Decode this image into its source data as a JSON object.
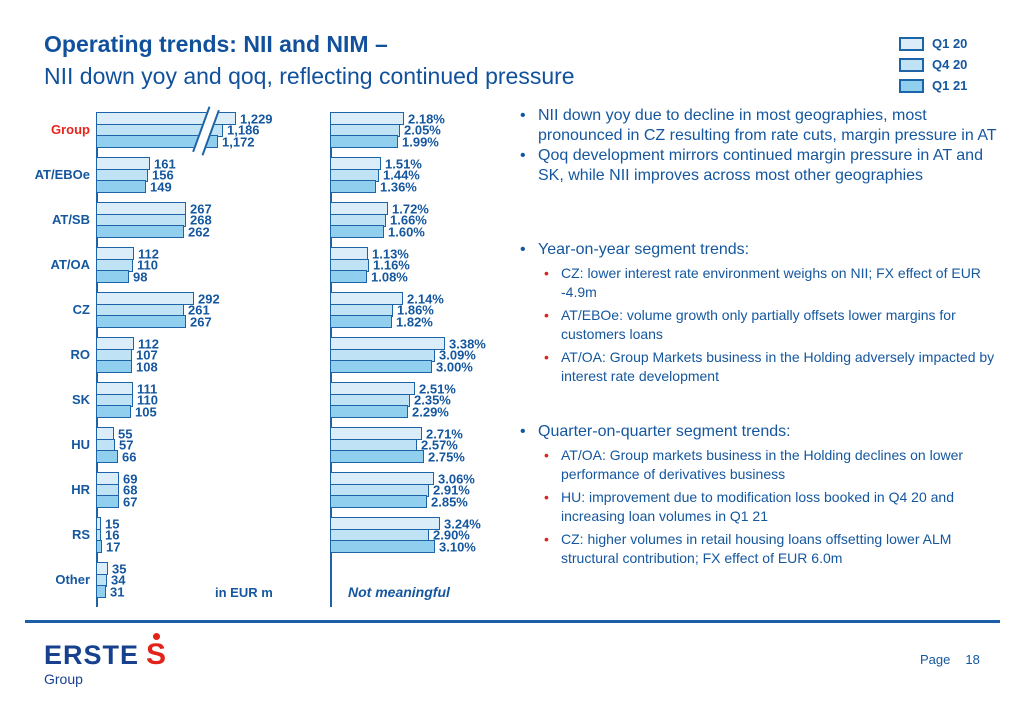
{
  "title": {
    "line1": "Operating trends: NII and NIM –",
    "line2": "NII down yoy and qoq, reflecting continued pressure"
  },
  "legend": [
    {
      "label": "Q1 20",
      "color": "#daedf9"
    },
    {
      "label": "Q4 20",
      "color": "#bfe2f4"
    },
    {
      "label": "Q1 21",
      "color": "#90d0ee"
    }
  ],
  "colors": {
    "text_blue": "#14579f",
    "title_blue": "#11519c",
    "accent_red": "#e8251d",
    "bar_border": "#1c64a7",
    "rule_blue": "#1b5fa8",
    "logo_blue": "#17418f",
    "logo_red": "#e2231a"
  },
  "chart_data": [
    {
      "id": "nii",
      "type": "bar",
      "orientation": "horizontal",
      "unit_label": "in EUR m",
      "categories": [
        "Group",
        "AT/EBOe",
        "AT/SB",
        "AT/OA",
        "CZ",
        "RO",
        "SK",
        "HU",
        "HR",
        "RS",
        "Other"
      ],
      "highlight_category": "Group",
      "axis_break_category": "Group",
      "series": [
        {
          "name": "Q1 20",
          "values": [
            1229,
            161,
            267,
            112,
            292,
            112,
            111,
            55,
            69,
            15,
            35
          ],
          "labels": [
            "1,229",
            "161",
            "267",
            "112",
            "292",
            "112",
            "111",
            "55",
            "69",
            "15",
            "35"
          ]
        },
        {
          "name": "Q4 20",
          "values": [
            1186,
            156,
            268,
            110,
            261,
            107,
            110,
            57,
            68,
            16,
            34
          ],
          "labels": [
            "1,186",
            "156",
            "268",
            "110",
            "261",
            "107",
            "110",
            "57",
            "68",
            "16",
            "34"
          ]
        },
        {
          "name": "Q1 21",
          "values": [
            1172,
            149,
            262,
            98,
            267,
            108,
            105,
            66,
            67,
            17,
            31
          ],
          "labels": [
            "1,172",
            "149",
            "262",
            "98",
            "267",
            "108",
            "105",
            "66",
            "67",
            "17",
            "31"
          ]
        }
      ]
    },
    {
      "id": "nim",
      "type": "bar",
      "orientation": "horizontal",
      "unit_label": "%",
      "categories": [
        "Group",
        "AT/EBOe",
        "AT/SB",
        "AT/OA",
        "CZ",
        "RO",
        "SK",
        "HU",
        "HR",
        "RS",
        "Other"
      ],
      "not_meaningful_category": "Other",
      "not_meaningful_text": "Not meaningful",
      "series": [
        {
          "name": "Q1 20",
          "values": [
            2.18,
            1.51,
            1.72,
            1.13,
            2.14,
            3.38,
            2.51,
            2.71,
            3.06,
            3.24,
            null
          ],
          "labels": [
            "2.18%",
            "1.51%",
            "1.72%",
            "1.13%",
            "2.14%",
            "3.38%",
            "2.51%",
            "2.71%",
            "3.06%",
            "3.24%",
            null
          ]
        },
        {
          "name": "Q4 20",
          "values": [
            2.05,
            1.44,
            1.66,
            1.16,
            1.86,
            3.09,
            2.35,
            2.57,
            2.91,
            2.9,
            null
          ],
          "labels": [
            "2.05%",
            "1.44%",
            "1.66%",
            "1.16%",
            "1.86%",
            "3.09%",
            "2.35%",
            "2.57%",
            "2.91%",
            "2.90%",
            null
          ]
        },
        {
          "name": "Q1 21",
          "values": [
            1.99,
            1.36,
            1.6,
            1.08,
            1.82,
            3.0,
            2.29,
            2.75,
            2.85,
            3.1,
            null
          ],
          "labels": [
            "1.99%",
            "1.36%",
            "1.60%",
            "1.08%",
            "1.82%",
            "3.00%",
            "2.29%",
            "2.75%",
            "2.85%",
            "3.10%",
            null
          ]
        }
      ]
    }
  ],
  "panel": {
    "blocks": [
      {
        "items": [
          {
            "level": 1,
            "text": "NII down yoy due to decline in most geographies, most pronounced in CZ resulting from rate cuts, margin pressure in AT"
          },
          {
            "level": 1,
            "text": "Qoq development mirrors continued margin pressure in AT and SK, while NII improves across most other geographies"
          }
        ]
      },
      {
        "items": [
          {
            "level": 1,
            "text": "Year-on-year segment trends:"
          },
          {
            "level": 2,
            "text": "CZ: lower interest rate environment weighs on NII; FX effect of EUR -4.9m"
          },
          {
            "level": 2,
            "text": "AT/EBOe: volume growth only partially offsets lower margins for customers loans"
          },
          {
            "level": 2,
            "text": "AT/OA: Group Markets business in the Holding adversely impacted by interest rate development"
          }
        ]
      },
      {
        "items": [
          {
            "level": 1,
            "text": "Quarter-on-quarter segment trends:"
          },
          {
            "level": 2,
            "text": "AT/OA: Group markets business in the Holding declines on lower performance of derivatives business"
          },
          {
            "level": 2,
            "text": "HU: improvement due to modification loss booked in Q4 20 and increasing loan volumes in Q1 21"
          },
          {
            "level": 2,
            "text": "CZ: higher volumes in retail housing loans offsetting lower ALM structural contribution; FX effect of EUR 6.0m"
          }
        ]
      }
    ]
  },
  "footer": {
    "brand": "ERSTE",
    "brand_glyph": "S",
    "brand_sub": "Group",
    "page_label": "Page",
    "page_number": "18"
  }
}
